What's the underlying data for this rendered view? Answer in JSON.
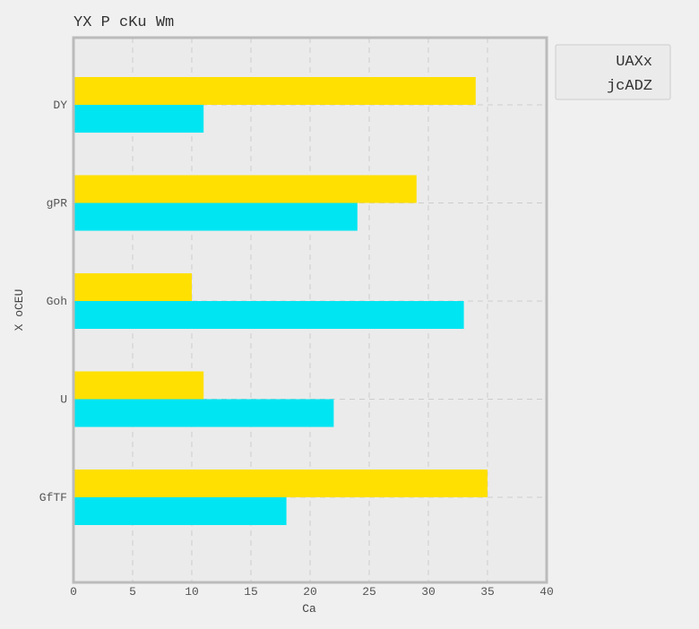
{
  "chart_data": {
    "type": "bar",
    "orientation": "horizontal",
    "title": "YX  P cKu Wm",
    "xlabel": "Ca",
    "ylabel": "X oCEU",
    "categories": [
      "DY",
      "gPR",
      "Goh",
      "U",
      "GfTF"
    ],
    "series": [
      {
        "name": "UAXx",
        "color": "#ffe000",
        "values": [
          34,
          29,
          10,
          11,
          35
        ]
      },
      {
        "name": "jcADZ",
        "color": "#00e5f2",
        "values": [
          11,
          24,
          33,
          22,
          18
        ]
      }
    ],
    "xlim": [
      0,
      40
    ],
    "xticks": [
      0,
      5,
      10,
      15,
      20,
      25,
      30,
      35,
      40
    ],
    "grid": true,
    "legend_position": "top-right",
    "colors": {
      "background": "#f0f0f0",
      "plot_background": "#ebebeb",
      "frame": "#bbbbbb",
      "grid": "#cccccc"
    }
  }
}
